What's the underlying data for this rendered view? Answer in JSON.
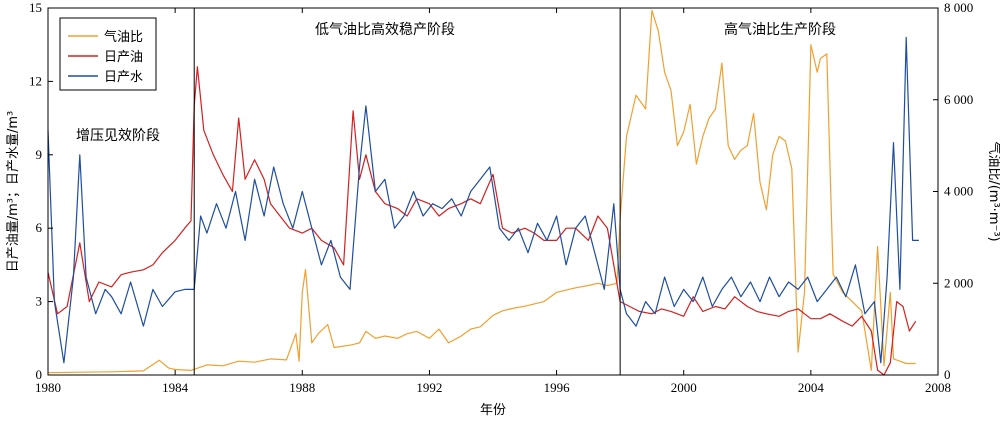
{
  "chart_data": {
    "type": "line",
    "xlabel": "年份",
    "ylabel_left": "日产油量/m³；日产水量/m³",
    "ylabel_right": "气油比/(m³·m⁻³)",
    "xlim": [
      1980,
      2008
    ],
    "ylim_left": [
      0,
      15
    ],
    "ylim_right": [
      0,
      8000
    ],
    "x_ticks": [
      1980,
      1984,
      1988,
      1992,
      1996,
      2000,
      2004,
      2008
    ],
    "x_tick_labels": [
      "1980",
      "1984",
      "1988",
      "1992",
      "1996",
      "2000",
      "2004",
      "2008"
    ],
    "y_left_ticks": [
      0,
      3,
      6,
      9,
      12,
      15
    ],
    "y_left_tick_labels": [
      "0",
      "3",
      "6",
      "9",
      "12",
      "15"
    ],
    "y_right_ticks": [
      0,
      2000,
      4000,
      6000,
      8000
    ],
    "y_right_tick_labels": [
      "0",
      "2 000",
      "4 000",
      "6 000",
      "8 000"
    ],
    "legend": {
      "position": "top-left",
      "entries": [
        "气油比",
        "日产油",
        "日产水"
      ]
    },
    "stage_boundaries": [
      1984.6,
      1998.0
    ],
    "stages": [
      {
        "label": "增压见效阶段"
      },
      {
        "label": "低气油比高效稳产阶段"
      },
      {
        "label": "高气油比生产阶段"
      }
    ],
    "series": [
      {
        "name": "气油比",
        "axis": "right",
        "color": "#F0A030",
        "x": [
          1980.0,
          1981.0,
          1982.0,
          1983.0,
          1983.5,
          1983.8,
          1984.0,
          1984.5,
          1985.0,
          1985.5,
          1986.0,
          1986.5,
          1987.0,
          1987.5,
          1987.8,
          1987.9,
          1988.0,
          1988.1,
          1988.3,
          1988.5,
          1988.8,
          1989.0,
          1989.5,
          1989.8,
          1990.0,
          1990.3,
          1990.6,
          1991.0,
          1991.3,
          1991.6,
          1992.0,
          1992.3,
          1992.6,
          1993.0,
          1993.3,
          1993.6,
          1994.0,
          1994.3,
          1994.6,
          1995.0,
          1995.3,
          1995.6,
          1996.0,
          1996.3,
          1996.6,
          1997.0,
          1997.3,
          1997.6,
          1997.9,
          1998.0,
          1998.2,
          1998.5,
          1998.8,
          1999.0,
          1999.2,
          1999.4,
          1999.6,
          1999.8,
          2000.0,
          2000.2,
          2000.4,
          2000.6,
          2000.8,
          2001.0,
          2001.2,
          2001.4,
          2001.6,
          2001.8,
          2002.0,
          2002.2,
          2002.4,
          2002.6,
          2002.8,
          2003.0,
          2003.2,
          2003.4,
          2003.6,
          2003.8,
          2004.0,
          2004.2,
          2004.3,
          2004.5,
          2004.7,
          2005.0,
          2005.3,
          2005.6,
          2005.9,
          2006.1,
          2006.3,
          2006.5,
          2006.6,
          2006.8,
          2007.0,
          2007.3
        ],
        "values": [
          50,
          60,
          70,
          90,
          320,
          150,
          120,
          100,
          220,
          200,
          300,
          280,
          350,
          330,
          900,
          300,
          1800,
          2300,
          700,
          900,
          1100,
          600,
          650,
          700,
          950,
          800,
          850,
          800,
          900,
          950,
          800,
          1000,
          700,
          850,
          1000,
          1050,
          1300,
          1400,
          1450,
          1500,
          1550,
          1600,
          1800,
          1850,
          1900,
          1950,
          2000,
          1950,
          2000,
          3400,
          5200,
          6100,
          5800,
          7950,
          7500,
          6600,
          6200,
          5000,
          5300,
          5900,
          4600,
          5200,
          5600,
          5800,
          6800,
          5000,
          4700,
          4900,
          5000,
          5700,
          4200,
          3600,
          4800,
          5200,
          5100,
          4500,
          500,
          1800,
          7200,
          6600,
          6900,
          7000,
          2200,
          1800,
          1600,
          1400,
          100,
          2800,
          200,
          1800,
          350,
          300,
          250,
          250
        ]
      },
      {
        "name": "日产油",
        "axis": "left",
        "color": "#D42020",
        "x": [
          1980.0,
          1980.3,
          1980.6,
          1981.0,
          1981.3,
          1981.6,
          1982.0,
          1982.3,
          1982.6,
          1983.0,
          1983.3,
          1983.6,
          1984.0,
          1984.3,
          1984.5,
          1984.6,
          1984.7,
          1984.9,
          1985.2,
          1985.5,
          1985.8,
          1986.0,
          1986.2,
          1986.5,
          1986.8,
          1987.0,
          1987.3,
          1987.6,
          1988.0,
          1988.3,
          1988.6,
          1989.0,
          1989.3,
          1989.6,
          1989.8,
          1990.0,
          1990.3,
          1990.6,
          1991.0,
          1991.3,
          1991.6,
          1992.0,
          1992.3,
          1992.6,
          1993.0,
          1993.3,
          1993.6,
          1994.0,
          1994.3,
          1994.6,
          1995.0,
          1995.3,
          1995.6,
          1996.0,
          1996.3,
          1996.6,
          1997.0,
          1997.3,
          1997.6,
          1998.0,
          1998.3,
          1998.6,
          1999.0,
          1999.3,
          1999.6,
          2000.0,
          2000.3,
          2000.6,
          2001.0,
          2001.3,
          2001.6,
          2002.0,
          2002.3,
          2002.6,
          2003.0,
          2003.3,
          2003.6,
          2004.0,
          2004.3,
          2004.6,
          2005.0,
          2005.3,
          2005.6,
          2005.9,
          2006.1,
          2006.3,
          2006.5,
          2006.7,
          2006.9,
          2007.1,
          2007.3
        ],
        "values": [
          4.2,
          2.5,
          2.8,
          5.4,
          3.0,
          3.8,
          3.6,
          4.1,
          4.2,
          4.3,
          4.5,
          5.0,
          5.5,
          6.0,
          6.3,
          11.0,
          12.6,
          10.0,
          9.0,
          8.2,
          7.5,
          10.5,
          8.0,
          8.8,
          8.0,
          7.0,
          6.5,
          6.0,
          5.8,
          6.0,
          5.5,
          5.2,
          4.5,
          10.8,
          8.0,
          9.0,
          7.5,
          7.0,
          6.8,
          6.5,
          7.2,
          7.0,
          6.5,
          6.8,
          7.0,
          7.2,
          7.0,
          8.2,
          6.0,
          5.8,
          6.0,
          5.8,
          5.5,
          5.5,
          6.0,
          6.0,
          5.5,
          6.5,
          6.0,
          3.0,
          2.8,
          2.6,
          2.5,
          2.7,
          2.6,
          2.4,
          3.2,
          2.6,
          2.8,
          2.7,
          3.2,
          2.8,
          2.6,
          2.5,
          2.4,
          2.6,
          2.7,
          2.3,
          2.3,
          2.5,
          2.2,
          2.0,
          2.4,
          1.8,
          0.2,
          0.0,
          0.5,
          3.0,
          2.8,
          1.8,
          2.2
        ]
      },
      {
        "name": "日产水",
        "axis": "left",
        "color": "#1F4EA0",
        "x": [
          1980.0,
          1980.2,
          1980.5,
          1980.8,
          1981.0,
          1981.2,
          1981.5,
          1981.8,
          1982.0,
          1982.3,
          1982.6,
          1983.0,
          1983.3,
          1983.6,
          1984.0,
          1984.3,
          1984.6,
          1984.8,
          1985.0,
          1985.3,
          1985.6,
          1985.9,
          1986.2,
          1986.5,
          1986.8,
          1987.1,
          1987.4,
          1987.7,
          1988.0,
          1988.3,
          1988.6,
          1988.9,
          1989.2,
          1989.5,
          1989.8,
          1990.0,
          1990.3,
          1990.6,
          1990.9,
          1991.2,
          1991.5,
          1991.8,
          1992.1,
          1992.4,
          1992.7,
          1993.0,
          1993.3,
          1993.6,
          1993.9,
          1994.2,
          1994.5,
          1994.8,
          1995.1,
          1995.4,
          1995.7,
          1996.0,
          1996.3,
          1996.6,
          1996.9,
          1997.2,
          1997.5,
          1997.8,
          1998.0,
          1998.2,
          1998.5,
          1998.8,
          1999.1,
          1999.4,
          1999.7,
          2000.0,
          2000.3,
          2000.6,
          2000.9,
          2001.2,
          2001.5,
          2001.8,
          2002.1,
          2002.4,
          2002.7,
          2003.0,
          2003.3,
          2003.6,
          2003.9,
          2004.2,
          2004.5,
          2004.8,
          2005.1,
          2005.4,
          2005.7,
          2006.0,
          2006.2,
          2006.4,
          2006.6,
          2006.8,
          2007.0,
          2007.2,
          2007.4
        ],
        "values": [
          10.0,
          3.0,
          0.5,
          4.0,
          9.0,
          4.0,
          2.5,
          3.5,
          3.2,
          2.5,
          3.8,
          2.0,
          3.5,
          2.8,
          3.4,
          3.5,
          3.5,
          6.5,
          5.8,
          7.0,
          6.0,
          7.5,
          5.5,
          8.0,
          6.5,
          8.5,
          7.0,
          6.0,
          7.5,
          6.0,
          4.5,
          5.5,
          4.0,
          3.5,
          8.5,
          11.0,
          7.5,
          8.0,
          6.0,
          6.5,
          7.5,
          6.5,
          7.0,
          6.8,
          7.2,
          6.5,
          7.5,
          8.0,
          8.5,
          6.0,
          5.5,
          6.0,
          5.0,
          6.2,
          5.5,
          6.5,
          4.5,
          6.0,
          6.5,
          5.0,
          3.5,
          7.0,
          3.5,
          2.5,
          2.0,
          3.0,
          2.5,
          4.0,
          2.8,
          3.5,
          3.0,
          4.0,
          2.8,
          3.5,
          4.0,
          3.2,
          3.8,
          3.0,
          4.0,
          3.2,
          3.8,
          3.5,
          4.0,
          3.0,
          3.5,
          4.0,
          3.2,
          4.5,
          2.5,
          3.0,
          0.5,
          4.0,
          9.5,
          3.5,
          13.8,
          5.5,
          5.5
        ]
      }
    ]
  }
}
